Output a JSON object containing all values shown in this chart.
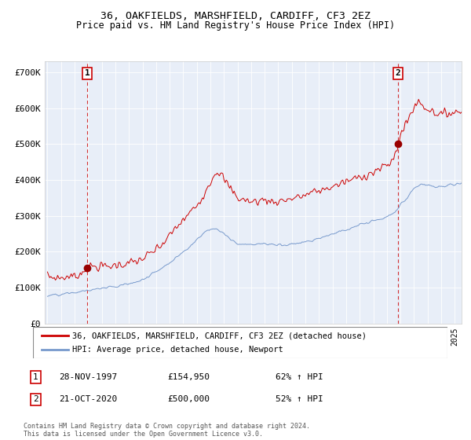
{
  "title": "36, OAKFIELDS, MARSHFIELD, CARDIFF, CF3 2EZ",
  "subtitle": "Price paid vs. HM Land Registry's House Price Index (HPI)",
  "ylim": [
    0,
    730000
  ],
  "yticks": [
    0,
    100000,
    200000,
    300000,
    400000,
    500000,
    600000,
    700000
  ],
  "ytick_labels": [
    "£0",
    "£100K",
    "£200K",
    "£300K",
    "£400K",
    "£500K",
    "£600K",
    "£700K"
  ],
  "legend_entry1": "36, OAKFIELDS, MARSHFIELD, CARDIFF, CF3 2EZ (detached house)",
  "legend_entry2": "HPI: Average price, detached house, Newport",
  "annotation1_label": "1",
  "annotation1_date": "28-NOV-1997",
  "annotation1_price": "£154,950",
  "annotation1_hpi": "62% ↑ HPI",
  "annotation2_label": "2",
  "annotation2_date": "21-OCT-2020",
  "annotation2_price": "£500,000",
  "annotation2_hpi": "52% ↑ HPI",
  "footer": "Contains HM Land Registry data © Crown copyright and database right 2024.\nThis data is licensed under the Open Government Licence v3.0.",
  "line1_color": "#cc0000",
  "line2_color": "#7799cc",
  "bg_color": "#e8eef8",
  "point1_color": "#990000",
  "point2_color": "#990000",
  "vline_color": "#cc0000",
  "marker1_x": 1997.92,
  "marker1_y": 154950,
  "marker2_x": 2020.81,
  "marker2_y": 500000,
  "xmin": 1994.8,
  "xmax": 2025.5
}
